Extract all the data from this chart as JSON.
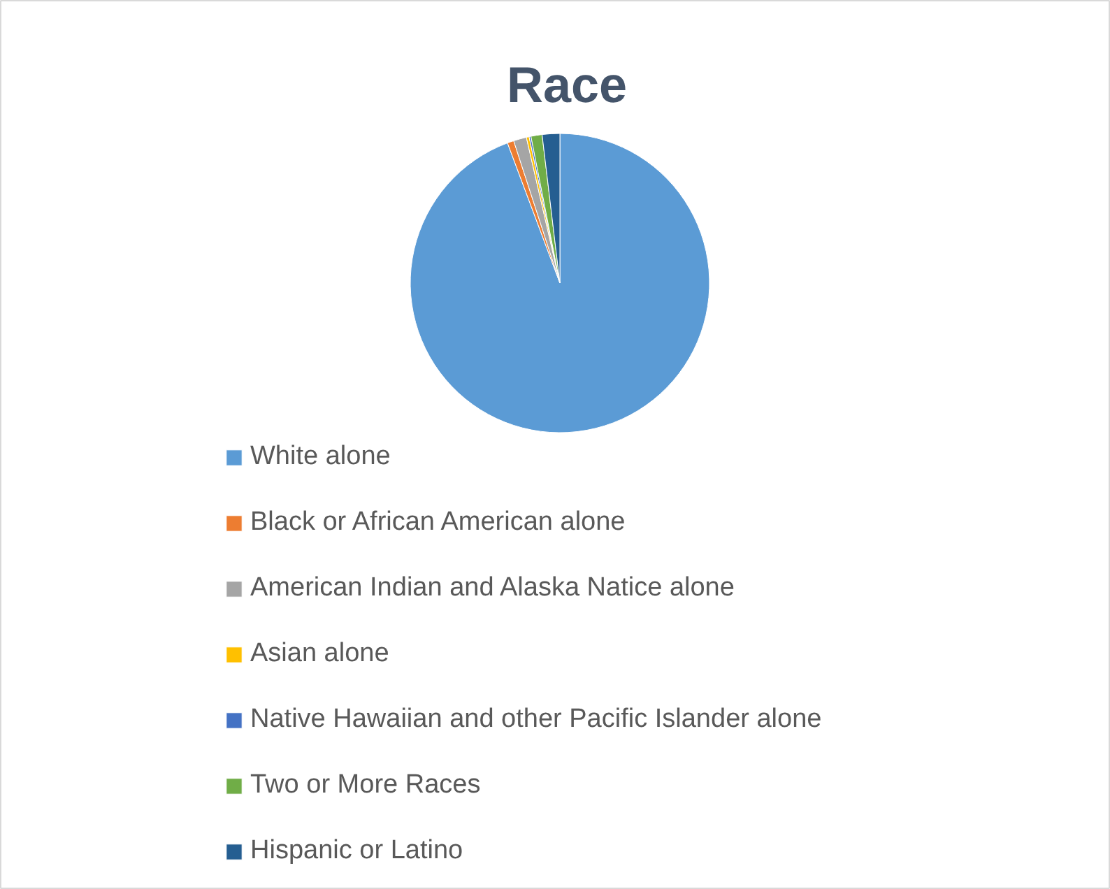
{
  "chart_data": {
    "type": "pie",
    "title": "Race",
    "categories": [
      "White alone",
      "Black or African American alone",
      "American Indian and Alaska Natice alone",
      "Asian alone",
      "Native Hawaiian and other Pacific Islander alone",
      "Two or More Races",
      "Hispanic or Latino"
    ],
    "values": [
      94.3,
      0.7,
      1.4,
      0.3,
      0.2,
      1.2,
      1.9
    ],
    "colors": [
      "#5b9bd5",
      "#ed7d31",
      "#a5a5a5",
      "#ffc000",
      "#4472c4",
      "#70ad47",
      "#255e91"
    ],
    "legend": "bottom"
  }
}
